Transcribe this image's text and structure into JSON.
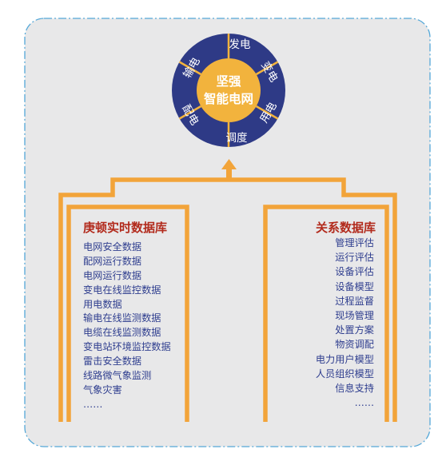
{
  "colors": {
    "background": "#e8e8e9",
    "frame_dash": "#55a8d8",
    "connector": "#f2a43a",
    "ring": "#2e3a86",
    "center": "#f2b33d",
    "title_red": "#b22a1c",
    "list_blue": "#2f3e8f"
  },
  "wheel": {
    "center_line1": "坚强",
    "center_line2": "智能电网",
    "segments": [
      "发电",
      "变电",
      "用电",
      "调度",
      "配电",
      "输电"
    ]
  },
  "left_panel": {
    "title": "庚顿实时数据库",
    "items": [
      "电网安全数据",
      "配网运行数据",
      "电网运行数据",
      "变电在线监控数据",
      "用电数据",
      "输电在线监测数据",
      "电缆在线监测数据",
      "变电站环境监控数据",
      "雷击安全数据",
      "线路微气象监测",
      "气象灾害",
      "……"
    ]
  },
  "right_panel": {
    "title": "关系数据库",
    "items": [
      "管理评估",
      "运行评估",
      "设备评估",
      "设备模型",
      "过程监督",
      "现场管理",
      "处置方案",
      "物资调配",
      "电力用户模型",
      "人员组织模型",
      "信息支持",
      "……"
    ]
  }
}
